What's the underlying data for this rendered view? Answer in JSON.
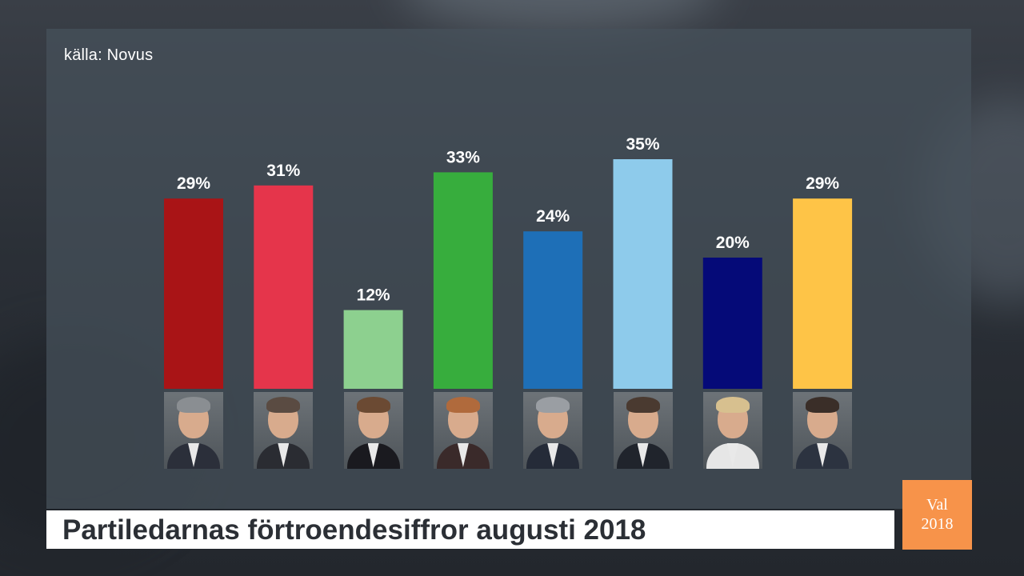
{
  "source": "källa: Novus",
  "title": "Partiledarnas förtroendesiffror augusti 2018",
  "logo": {
    "line1": "Val",
    "line2": "2018",
    "color": "#f7934a"
  },
  "chart_data": {
    "type": "bar",
    "title": "Partiledarnas förtroendesiffror augusti 2018",
    "xlabel": "",
    "ylabel": "",
    "ylim": [
      0,
      40
    ],
    "unit": "%",
    "grid": false,
    "legend": "none",
    "values": [
      29,
      31,
      12,
      33,
      24,
      35,
      20,
      29
    ],
    "labels": [
      "29%",
      "31%",
      "12%",
      "33%",
      "24%",
      "35%",
      "20%",
      "29%"
    ],
    "colors": [
      "#a91416",
      "#e5354b",
      "#8dd08f",
      "#37ad3d",
      "#1e6fb7",
      "#8ecbeb",
      "#050a78",
      "#fec447"
    ]
  },
  "portraits": [
    {
      "hair": "#8a8e92",
      "suit": "#2b2f3a"
    },
    {
      "hair": "#5a4b42",
      "suit": "#2a2c32"
    },
    {
      "hair": "#6b4a33",
      "suit": "#1a1a1f"
    },
    {
      "hair": "#b06a3c",
      "suit": "#3a2a2a"
    },
    {
      "hair": "#9a9ea3",
      "suit": "#252b38"
    },
    {
      "hair": "#4a3a30",
      "suit": "#20242c"
    },
    {
      "hair": "#d7c08f",
      "suit": "#e6e6e6"
    },
    {
      "hair": "#3a2e28",
      "suit": "#2c3340"
    }
  ]
}
